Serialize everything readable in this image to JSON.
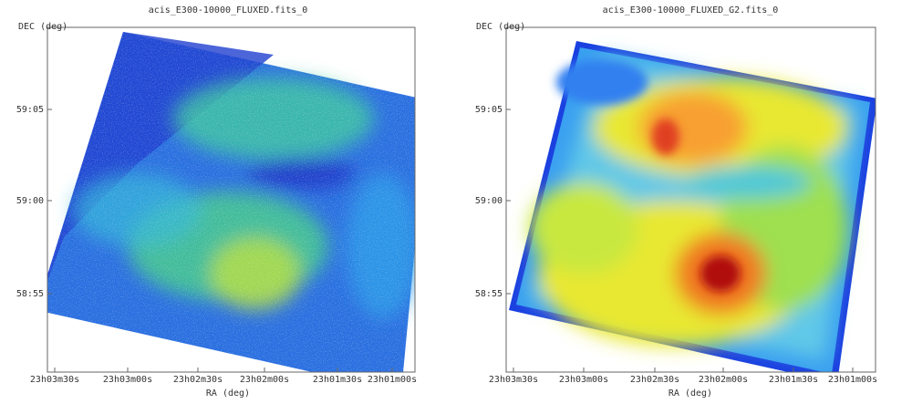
{
  "panels": [
    {
      "title": "acis_E300-10000_FLUXED.fits_0",
      "y_label": "DEC (deg)",
      "x_label": "RA (deg)",
      "y_ticks": [
        "59:05",
        "59:00",
        "58:55"
      ],
      "x_ticks": [
        "23h03m30s",
        "23h03m00s",
        "23h02m30s",
        "23h02m00s",
        "23h01m30s",
        "23h01m00s"
      ]
    },
    {
      "title": "acis_E300-10000_FLUXED_G2.fits_0",
      "y_label": "DEC (deg)",
      "x_label": "RA (deg)",
      "y_ticks": [
        "59:05",
        "59:00",
        "58:55"
      ],
      "x_ticks": [
        "23h03m30s",
        "23h03m00s",
        "23h02m30s",
        "23h02m00s",
        "23h01m30s",
        "23h01m00s"
      ]
    }
  ]
}
